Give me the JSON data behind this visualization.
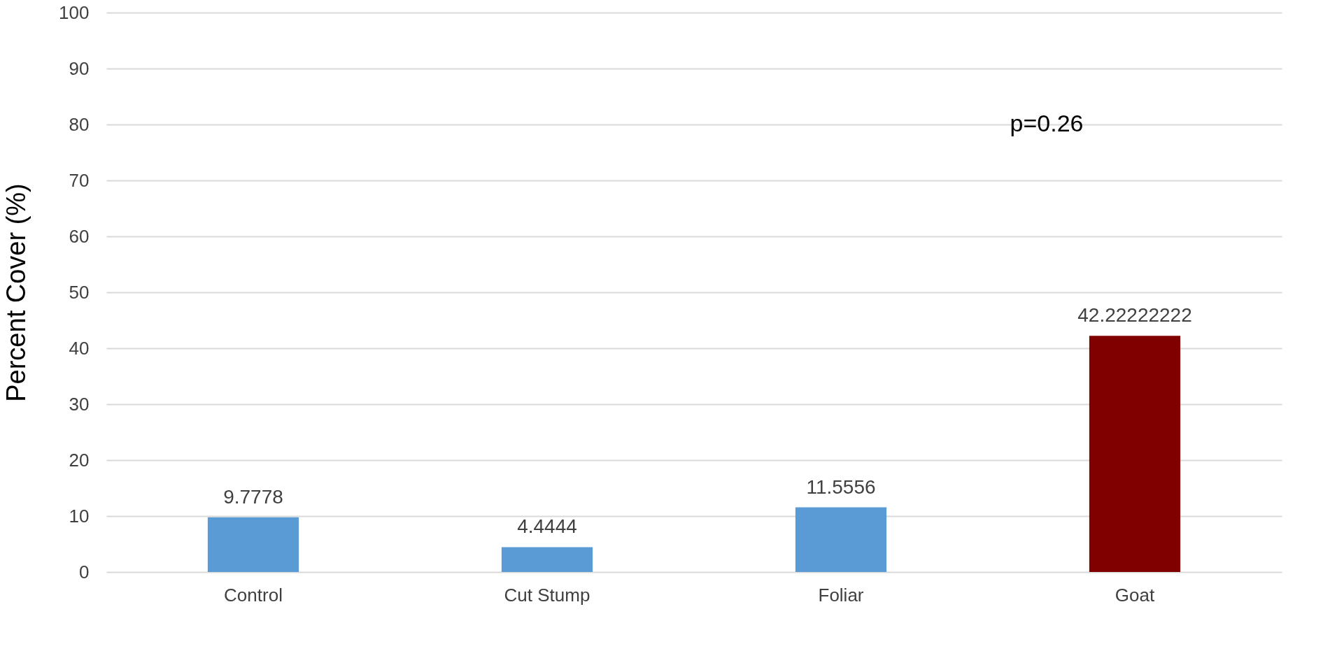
{
  "chart_data": {
    "type": "bar",
    "ylabel": "Percent Cover (%)",
    "categories": [
      "Control",
      "Cut Stump",
      "Foliar",
      "Goat"
    ],
    "values": [
      9.7778,
      4.4444,
      11.5556,
      42.22222222
    ],
    "colors": [
      "#5b9bd5",
      "#5b9bd5",
      "#5b9bd5",
      "#800000"
    ],
    "ylim": [
      0,
      100
    ],
    "yticks": [
      0,
      10,
      20,
      30,
      40,
      50,
      60,
      70,
      80,
      90,
      100
    ],
    "grid": "y",
    "data_labels": true,
    "annotations": [
      "p=0.26"
    ]
  }
}
